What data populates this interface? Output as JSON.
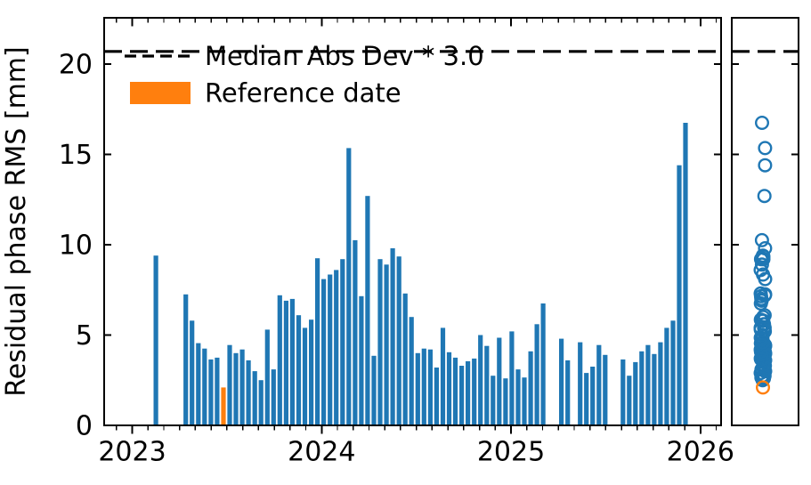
{
  "figure": {
    "ylabel": "Residual phase RMS [mm]",
    "legend": {
      "entries": [
        {
          "label": "Median Abs Dev * 3.0",
          "marker": "dashed-line",
          "color": "#000000"
        },
        {
          "label": "Reference date",
          "marker": "filled-patch",
          "color": "#ff7f0e"
        }
      ]
    }
  },
  "chart_data": {
    "type": "bar",
    "title": "",
    "xlabel": "",
    "ylabel": "Residual phase RMS [mm]",
    "xlim": [
      2022.852,
      2026.109
    ],
    "ylim": [
      0,
      22.56
    ],
    "x_ticks": [
      2023,
      2024,
      2025,
      2026
    ],
    "x_tick_labels": [
      "2023",
      "2024",
      "2025",
      "2026"
    ],
    "x_minor_tick_interval_years": 0.083333,
    "y_ticks": [
      0,
      5,
      10,
      15,
      20
    ],
    "y_tick_labels": [
      "0",
      "5",
      "10",
      "15",
      "20"
    ],
    "grid": false,
    "legend_position": "upper-left",
    "bar_color": "#1f77b4",
    "reference_color": "#ff7f0e",
    "threshold_line": {
      "label": "Median Abs Dev * 3.0",
      "value": 20.7,
      "style": "dashed",
      "color": "#000000"
    },
    "reference_index": 7,
    "bars_format": [
      "decimal_year",
      "rms_mm"
    ],
    "bars": [
      [
        2023.125,
        9.4
      ],
      [
        2023.283,
        7.25
      ],
      [
        2023.3161,
        5.8
      ],
      [
        2023.3492,
        4.55
      ],
      [
        2023.3823,
        4.25
      ],
      [
        2023.4154,
        3.65
      ],
      [
        2023.4485,
        3.75
      ],
      [
        2023.4816,
        2.1
      ],
      [
        2023.5147,
        4.45
      ],
      [
        2023.5478,
        4.0
      ],
      [
        2023.5809,
        4.2
      ],
      [
        2023.614,
        3.6
      ],
      [
        2023.6471,
        3.0
      ],
      [
        2023.6802,
        2.5
      ],
      [
        2023.7133,
        5.3
      ],
      [
        2023.7464,
        3.1
      ],
      [
        2023.7795,
        7.2
      ],
      [
        2023.8126,
        6.9
      ],
      [
        2023.8457,
        7.0
      ],
      [
        2023.8788,
        6.1
      ],
      [
        2023.9119,
        5.4
      ],
      [
        2023.945,
        5.85
      ],
      [
        2023.9781,
        9.25
      ],
      [
        2024.0112,
        8.1
      ],
      [
        2024.0443,
        8.35
      ],
      [
        2024.0774,
        8.6
      ],
      [
        2024.1105,
        9.2
      ],
      [
        2024.1436,
        15.35
      ],
      [
        2024.1767,
        10.25
      ],
      [
        2024.2098,
        7.15
      ],
      [
        2024.2429,
        12.7
      ],
      [
        2024.276,
        3.85
      ],
      [
        2024.3091,
        9.2
      ],
      [
        2024.3422,
        8.9
      ],
      [
        2024.3753,
        9.8
      ],
      [
        2024.4084,
        9.35
      ],
      [
        2024.4415,
        7.3
      ],
      [
        2024.4746,
        6.0
      ],
      [
        2024.5077,
        4.0
      ],
      [
        2024.5408,
        4.25
      ],
      [
        2024.5739,
        4.2
      ],
      [
        2024.607,
        3.2
      ],
      [
        2024.6401,
        5.4
      ],
      [
        2024.6732,
        4.05
      ],
      [
        2024.7063,
        3.75
      ],
      [
        2024.7394,
        3.3
      ],
      [
        2024.7725,
        3.55
      ],
      [
        2024.8056,
        3.7
      ],
      [
        2024.8387,
        5.0
      ],
      [
        2024.8718,
        4.4
      ],
      [
        2024.9049,
        2.75
      ],
      [
        2024.938,
        4.85
      ],
      [
        2024.9711,
        2.6
      ],
      [
        2025.0042,
        5.2
      ],
      [
        2025.0373,
        3.1
      ],
      [
        2025.0704,
        2.65
      ],
      [
        2025.1035,
        4.1
      ],
      [
        2025.1366,
        5.6
      ],
      [
        2025.1697,
        6.75
      ],
      [
        2025.266,
        4.8
      ],
      [
        2025.299,
        3.6
      ],
      [
        2025.365,
        4.6
      ],
      [
        2025.398,
        2.9
      ],
      [
        2025.431,
        3.25
      ],
      [
        2025.464,
        4.45
      ],
      [
        2025.497,
        3.9
      ],
      [
        2025.591,
        3.65
      ],
      [
        2025.624,
        2.75
      ],
      [
        2025.657,
        3.5
      ],
      [
        2025.69,
        4.1
      ],
      [
        2025.723,
        4.45
      ],
      [
        2025.756,
        3.95
      ],
      [
        2025.789,
        4.6
      ],
      [
        2025.822,
        5.4
      ],
      [
        2025.855,
        5.8
      ],
      [
        2025.888,
        14.4
      ],
      [
        2025.921,
        16.75
      ]
    ],
    "strip_panel": {
      "type": "strip",
      "marker": "open-circle",
      "point_color": "#1f77b4",
      "reference_point_color": "#ff7f0e",
      "values_from": "bars",
      "y_ticks": [
        0,
        5,
        10,
        15,
        20
      ]
    }
  }
}
